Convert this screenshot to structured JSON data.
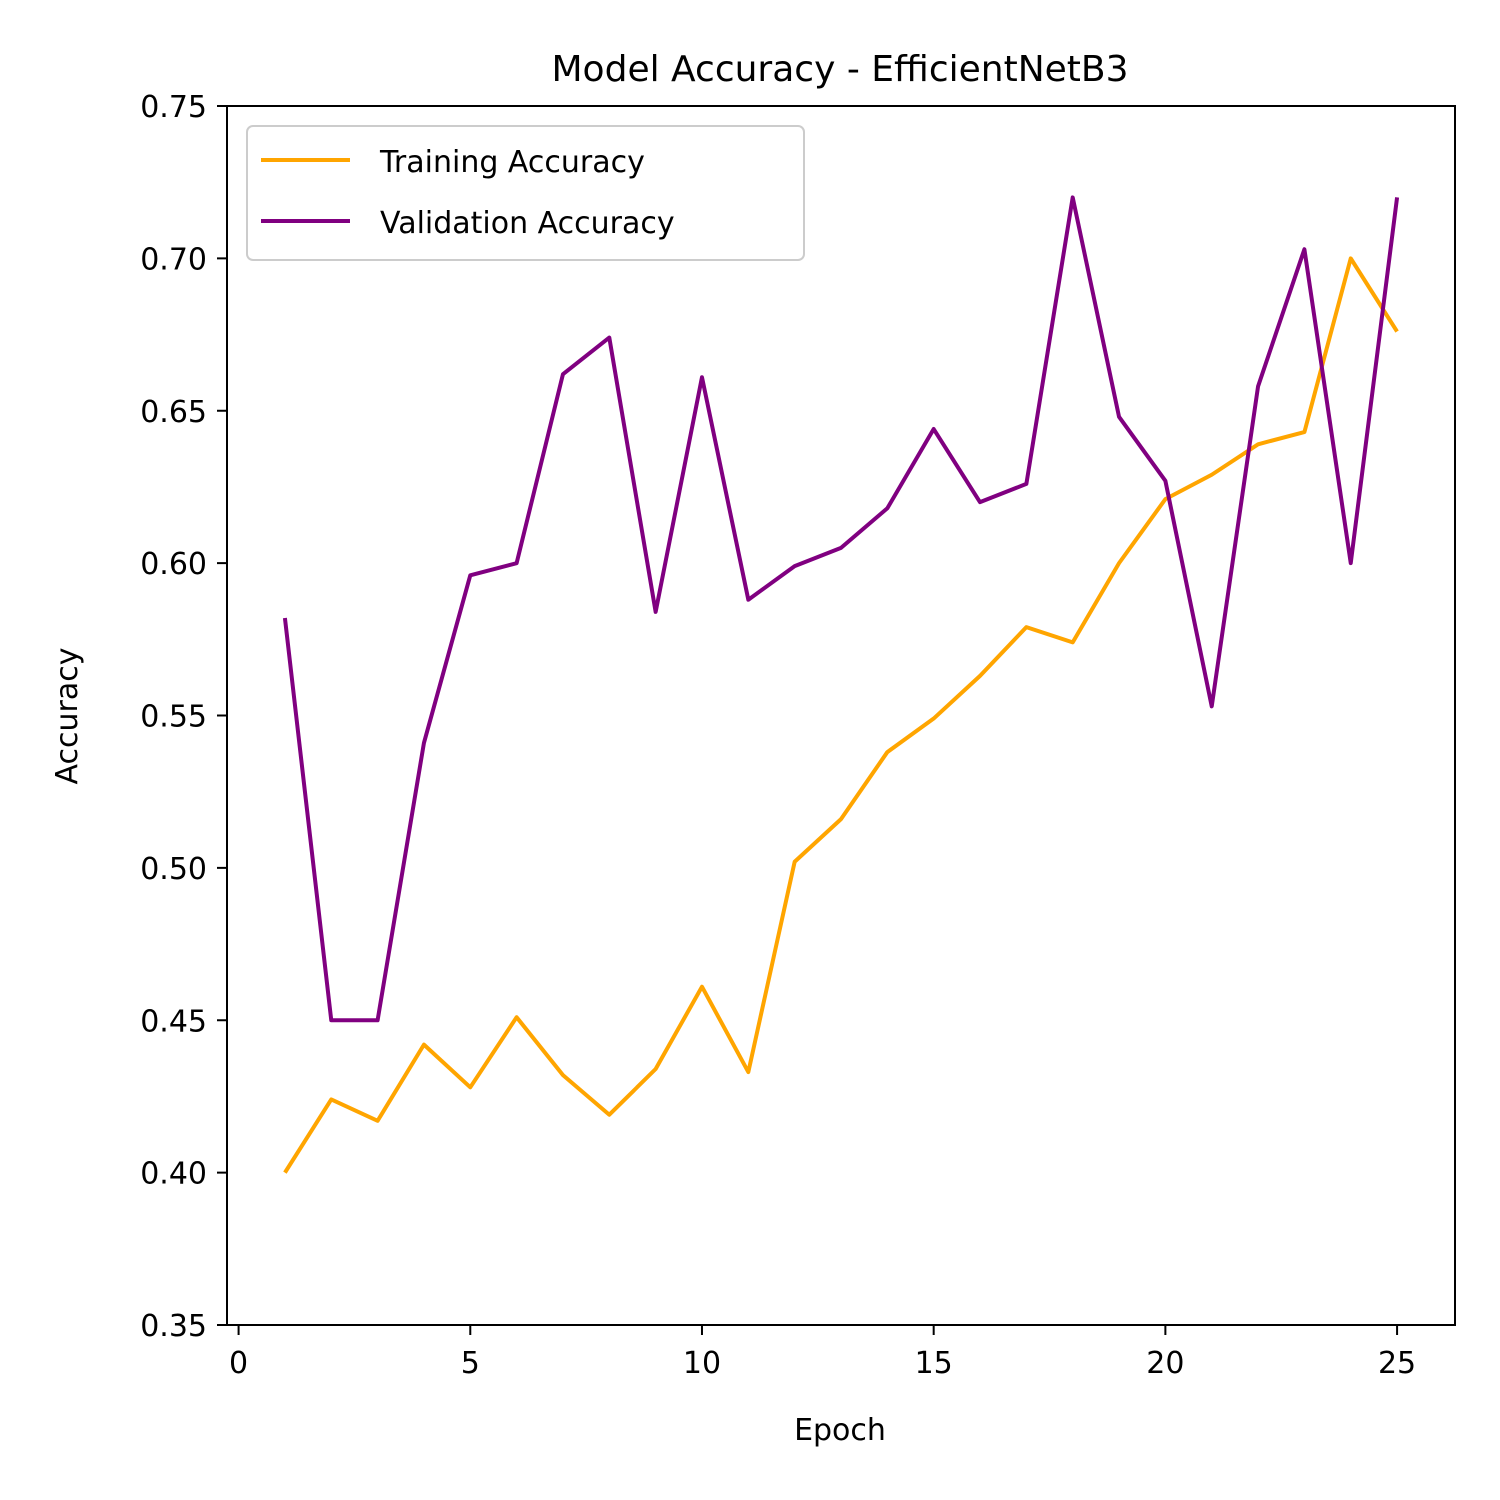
{
  "chart_data": {
    "type": "line",
    "title": "Model Accuracy - EfficientNetB3",
    "xlabel": "Epoch",
    "ylabel": "Accuracy",
    "xlim": [
      -0.25,
      26.25
    ],
    "ylim": [
      0.35,
      0.75
    ],
    "xticks": [
      0,
      5,
      10,
      15,
      20,
      25
    ],
    "xtick_labels": [
      "0",
      "5",
      "10",
      "15",
      "20",
      "25"
    ],
    "yticks": [
      0.35,
      0.4,
      0.45,
      0.5,
      0.55,
      0.6,
      0.65,
      0.7,
      0.75
    ],
    "ytick_labels": [
      "0.35",
      "0.40",
      "0.45",
      "0.50",
      "0.55",
      "0.60",
      "0.65",
      "0.70",
      "0.75"
    ],
    "grid": false,
    "legend_position": "upper-left",
    "x": [
      1,
      2,
      3,
      4,
      5,
      6,
      7,
      8,
      9,
      10,
      11,
      12,
      13,
      14,
      15,
      16,
      17,
      18,
      19,
      20,
      21,
      22,
      23,
      24,
      25
    ],
    "series": [
      {
        "name": "Training Accuracy",
        "color": "#FFA500",
        "values": [
          0.4,
          0.424,
          0.417,
          0.442,
          0.428,
          0.451,
          0.432,
          0.419,
          0.434,
          0.461,
          0.433,
          0.502,
          0.516,
          0.538,
          0.549,
          0.563,
          0.579,
          0.574,
          0.6,
          0.621,
          0.629,
          0.639,
          0.643,
          0.7,
          0.676
        ]
      },
      {
        "name": "Validation Accuracy",
        "color": "#800080",
        "values": [
          0.582,
          0.45,
          0.45,
          0.541,
          0.596,
          0.6,
          0.662,
          0.674,
          0.584,
          0.661,
          0.588,
          0.599,
          0.605,
          0.618,
          0.644,
          0.62,
          0.626,
          0.72,
          0.648,
          0.627,
          0.553,
          0.658,
          0.703,
          0.6,
          0.72
        ]
      }
    ]
  }
}
